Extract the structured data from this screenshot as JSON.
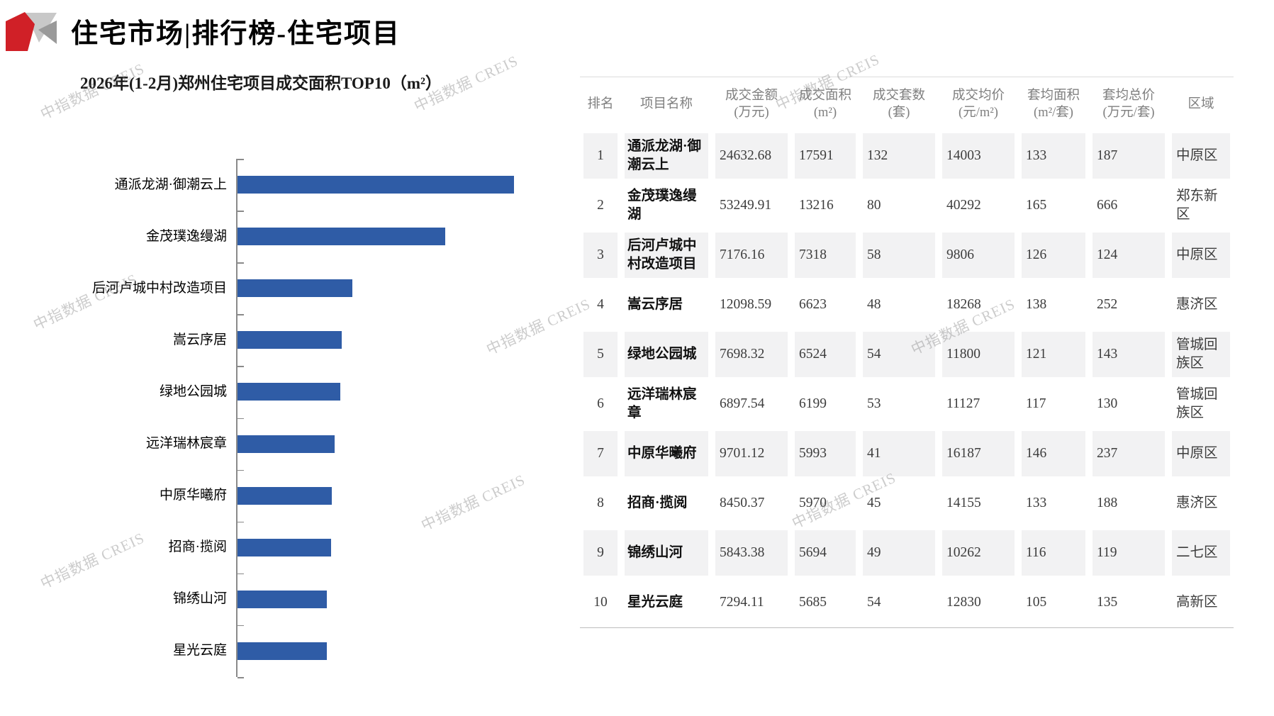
{
  "header": {
    "title": "住宅市场|排行榜-住宅项目"
  },
  "watermark": {
    "text": "中指数据 CREIS"
  },
  "chart_data": {
    "type": "bar",
    "orientation": "horizontal",
    "title": "2026年(1-2月)郑州住宅项目成交面积TOP10（m²）",
    "categories": [
      "通派龙湖·御潮云上",
      "金茂璞逸缦湖",
      "后河卢城中村改造项目",
      "嵩云序居",
      "绿地公园城",
      "远洋瑞林宸章",
      "中原华曦府",
      "招商·揽阅",
      "锦绣山河",
      "星光云庭"
    ],
    "values": [
      17591,
      13216,
      7318,
      6623,
      6524,
      6199,
      5993,
      5970,
      5694,
      5685
    ],
    "xlabel": "",
    "ylabel": "",
    "xlim": [
      0,
      17600
    ],
    "grid": false,
    "legend": false,
    "bar_color": "#2F5CA6",
    "axis_color": "#8a8a8a"
  },
  "table": {
    "columns": [
      {
        "title": "排名",
        "unit": ""
      },
      {
        "title": "项目名称",
        "unit": ""
      },
      {
        "title": "成交金额",
        "unit": "(万元)"
      },
      {
        "title": "成交面积",
        "unit": "(m²)"
      },
      {
        "title": "成交套数",
        "unit": "(套)"
      },
      {
        "title": "成交均价",
        "unit": "(元/m²)"
      },
      {
        "title": "套均面积",
        "unit": "(m²/套)"
      },
      {
        "title": "套均总价",
        "unit": "(万元/套)"
      },
      {
        "title": "区域",
        "unit": ""
      }
    ],
    "rows": [
      [
        "1",
        "通派龙湖·御潮云上",
        "24632.68",
        "17591",
        "132",
        "14003",
        "133",
        "187",
        "中原区"
      ],
      [
        "2",
        "金茂璞逸缦湖",
        "53249.91",
        "13216",
        "80",
        "40292",
        "165",
        "666",
        "郑东新区"
      ],
      [
        "3",
        "后河卢城中村改造项目",
        "7176.16",
        "7318",
        "58",
        "9806",
        "126",
        "124",
        "中原区"
      ],
      [
        "4",
        "嵩云序居",
        "12098.59",
        "6623",
        "48",
        "18268",
        "138",
        "252",
        "惠济区"
      ],
      [
        "5",
        "绿地公园城",
        "7698.32",
        "6524",
        "54",
        "11800",
        "121",
        "143",
        "管城回族区"
      ],
      [
        "6",
        "远洋瑞林宸章",
        "6897.54",
        "6199",
        "53",
        "11127",
        "117",
        "130",
        "管城回族区"
      ],
      [
        "7",
        "中原华曦府",
        "9701.12",
        "5993",
        "41",
        "16187",
        "146",
        "237",
        "中原区"
      ],
      [
        "8",
        "招商·揽阅",
        "8450.37",
        "5970",
        "45",
        "14155",
        "133",
        "188",
        "惠济区"
      ],
      [
        "9",
        "锦绣山河",
        "5843.38",
        "5694",
        "49",
        "10262",
        "116",
        "119",
        "二七区"
      ],
      [
        "10",
        "星光云庭",
        "7294.11",
        "5685",
        "54",
        "12830",
        "105",
        "135",
        "高新区"
      ]
    ]
  },
  "colors": {
    "bar": "#2F5CA6",
    "band": "#f2f2f3",
    "header_text": "#7f7f7f",
    "logo_red": "#d02027",
    "logo_gray_light": "#c8c8c8",
    "logo_gray_dark": "#9a9a9a"
  }
}
